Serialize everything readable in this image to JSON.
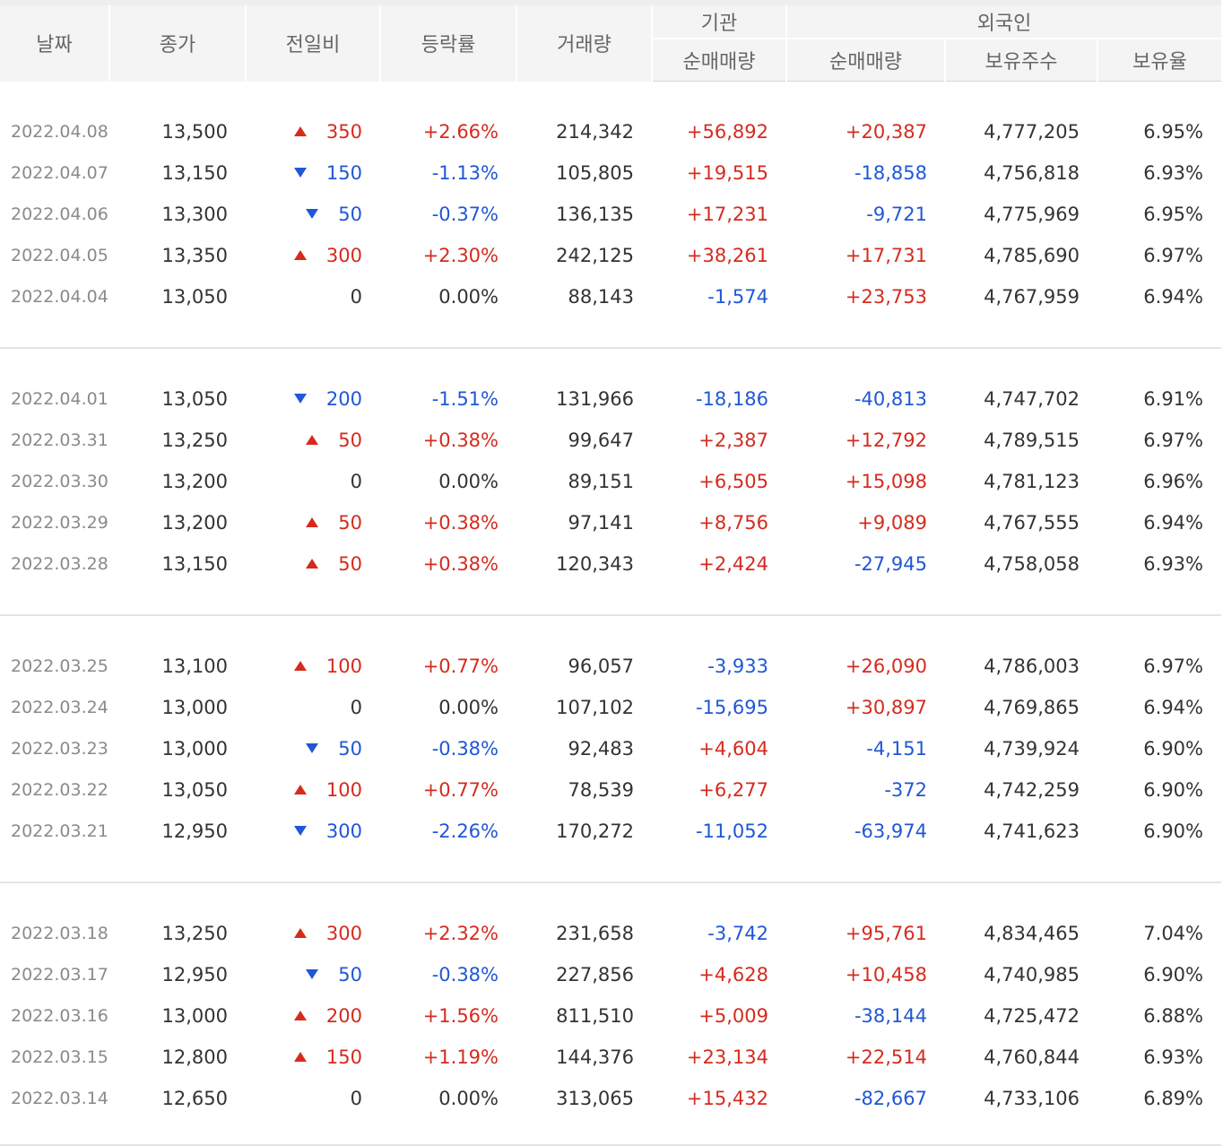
{
  "header": {
    "date": "날짜",
    "close": "종가",
    "change": "전일비",
    "rate": "등락률",
    "volume": "거래량",
    "institution": "기관",
    "foreign": "외국인",
    "inst_net": "순매매량",
    "foreign_net": "순매매량",
    "foreign_shares": "보유주수",
    "foreign_ratio": "보유율"
  },
  "colors": {
    "up": "#d52b1e",
    "down": "#2057d6",
    "neutral": "#333333"
  },
  "icons": {
    "up": "triangle-up-icon",
    "down": "triangle-down-icon"
  },
  "groups": [
    {
      "rows": [
        {
          "date": "2022.04.08",
          "close": "13,500",
          "dir": "up",
          "change": "350",
          "rate": "+2.66%",
          "volume": "214,342",
          "inst": "+56,892",
          "foreign": "+20,387",
          "shares": "4,777,205",
          "ratio": "6.95%"
        },
        {
          "date": "2022.04.07",
          "close": "13,150",
          "dir": "down",
          "change": "150",
          "rate": "-1.13%",
          "volume": "105,805",
          "inst": "+19,515",
          "foreign": "-18,858",
          "shares": "4,756,818",
          "ratio": "6.93%"
        },
        {
          "date": "2022.04.06",
          "close": "13,300",
          "dir": "down",
          "change": "50",
          "rate": "-0.37%",
          "volume": "136,135",
          "inst": "+17,231",
          "foreign": "-9,721",
          "shares": "4,775,969",
          "ratio": "6.95%"
        },
        {
          "date": "2022.04.05",
          "close": "13,350",
          "dir": "up",
          "change": "300",
          "rate": "+2.30%",
          "volume": "242,125",
          "inst": "+38,261",
          "foreign": "+17,731",
          "shares": "4,785,690",
          "ratio": "6.97%"
        },
        {
          "date": "2022.04.04",
          "close": "13,050",
          "dir": "none",
          "change": "0",
          "rate": "0.00%",
          "volume": "88,143",
          "inst": "-1,574",
          "foreign": "+23,753",
          "shares": "4,767,959",
          "ratio": "6.94%"
        }
      ]
    },
    {
      "rows": [
        {
          "date": "2022.04.01",
          "close": "13,050",
          "dir": "down",
          "change": "200",
          "rate": "-1.51%",
          "volume": "131,966",
          "inst": "-18,186",
          "foreign": "-40,813",
          "shares": "4,747,702",
          "ratio": "6.91%"
        },
        {
          "date": "2022.03.31",
          "close": "13,250",
          "dir": "up",
          "change": "50",
          "rate": "+0.38%",
          "volume": "99,647",
          "inst": "+2,387",
          "foreign": "+12,792",
          "shares": "4,789,515",
          "ratio": "6.97%"
        },
        {
          "date": "2022.03.30",
          "close": "13,200",
          "dir": "none",
          "change": "0",
          "rate": "0.00%",
          "volume": "89,151",
          "inst": "+6,505",
          "foreign": "+15,098",
          "shares": "4,781,123",
          "ratio": "6.96%"
        },
        {
          "date": "2022.03.29",
          "close": "13,200",
          "dir": "up",
          "change": "50",
          "rate": "+0.38%",
          "volume": "97,141",
          "inst": "+8,756",
          "foreign": "+9,089",
          "shares": "4,767,555",
          "ratio": "6.94%"
        },
        {
          "date": "2022.03.28",
          "close": "13,150",
          "dir": "up",
          "change": "50",
          "rate": "+0.38%",
          "volume": "120,343",
          "inst": "+2,424",
          "foreign": "-27,945",
          "shares": "4,758,058",
          "ratio": "6.93%"
        }
      ]
    },
    {
      "rows": [
        {
          "date": "2022.03.25",
          "close": "13,100",
          "dir": "up",
          "change": "100",
          "rate": "+0.77%",
          "volume": "96,057",
          "inst": "-3,933",
          "foreign": "+26,090",
          "shares": "4,786,003",
          "ratio": "6.97%"
        },
        {
          "date": "2022.03.24",
          "close": "13,000",
          "dir": "none",
          "change": "0",
          "rate": "0.00%",
          "volume": "107,102",
          "inst": "-15,695",
          "foreign": "+30,897",
          "shares": "4,769,865",
          "ratio": "6.94%"
        },
        {
          "date": "2022.03.23",
          "close": "13,000",
          "dir": "down",
          "change": "50",
          "rate": "-0.38%",
          "volume": "92,483",
          "inst": "+4,604",
          "foreign": "-4,151",
          "shares": "4,739,924",
          "ratio": "6.90%"
        },
        {
          "date": "2022.03.22",
          "close": "13,050",
          "dir": "up",
          "change": "100",
          "rate": "+0.77%",
          "volume": "78,539",
          "inst": "+6,277",
          "foreign": "-372",
          "shares": "4,742,259",
          "ratio": "6.90%"
        },
        {
          "date": "2022.03.21",
          "close": "12,950",
          "dir": "down",
          "change": "300",
          "rate": "-2.26%",
          "volume": "170,272",
          "inst": "-11,052",
          "foreign": "-63,974",
          "shares": "4,741,623",
          "ratio": "6.90%"
        }
      ]
    },
    {
      "rows": [
        {
          "date": "2022.03.18",
          "close": "13,250",
          "dir": "up",
          "change": "300",
          "rate": "+2.32%",
          "volume": "231,658",
          "inst": "-3,742",
          "foreign": "+95,761",
          "shares": "4,834,465",
          "ratio": "7.04%"
        },
        {
          "date": "2022.03.17",
          "close": "12,950",
          "dir": "down",
          "change": "50",
          "rate": "-0.38%",
          "volume": "227,856",
          "inst": "+4,628",
          "foreign": "+10,458",
          "shares": "4,740,985",
          "ratio": "6.90%"
        },
        {
          "date": "2022.03.16",
          "close": "13,000",
          "dir": "up",
          "change": "200",
          "rate": "+1.56%",
          "volume": "811,510",
          "inst": "+5,009",
          "foreign": "-38,144",
          "shares": "4,725,472",
          "ratio": "6.88%"
        },
        {
          "date": "2022.03.15",
          "close": "12,800",
          "dir": "up",
          "change": "150",
          "rate": "+1.19%",
          "volume": "144,376",
          "inst": "+23,134",
          "foreign": "+22,514",
          "shares": "4,760,844",
          "ratio": "6.93%"
        },
        {
          "date": "2022.03.14",
          "close": "12,650",
          "dir": "none",
          "change": "0",
          "rate": "0.00%",
          "volume": "313,065",
          "inst": "+15,432",
          "foreign": "-82,667",
          "shares": "4,733,106",
          "ratio": "6.89%"
        }
      ]
    }
  ]
}
